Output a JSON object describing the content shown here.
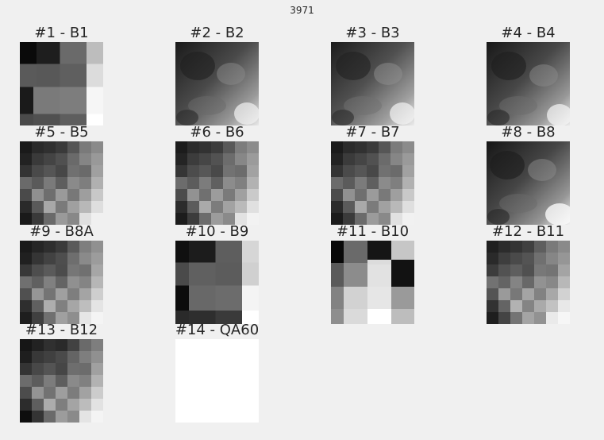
{
  "figure": {
    "title": "3971"
  },
  "panels": [
    {
      "title": "#1 - B1",
      "texture": "blocky-coarse"
    },
    {
      "title": "#2 - B2",
      "texture": "smooth"
    },
    {
      "title": "#3 - B3",
      "texture": "smooth"
    },
    {
      "title": "#4 - B4",
      "texture": "smooth"
    },
    {
      "title": "#5 - B5",
      "texture": "medium"
    },
    {
      "title": "#6 - B6",
      "texture": "medium"
    },
    {
      "title": "#7 - B7",
      "texture": "medium"
    },
    {
      "title": "#8 - B8",
      "texture": "smooth"
    },
    {
      "title": "#9 - B8A",
      "texture": "medium"
    },
    {
      "title": "#10 - B9",
      "texture": "blocky-coarse"
    },
    {
      "title": "#11 - B10",
      "texture": "blocky-coarse"
    },
    {
      "title": "#12 - B11",
      "texture": "medium"
    },
    {
      "title": "#13 - B12",
      "texture": "medium"
    },
    {
      "title": "#14 - QA60",
      "texture": "blank"
    }
  ],
  "colors": {
    "background": "#f0f0f0",
    "text": "#262626",
    "blank_image": "#ffffff"
  }
}
